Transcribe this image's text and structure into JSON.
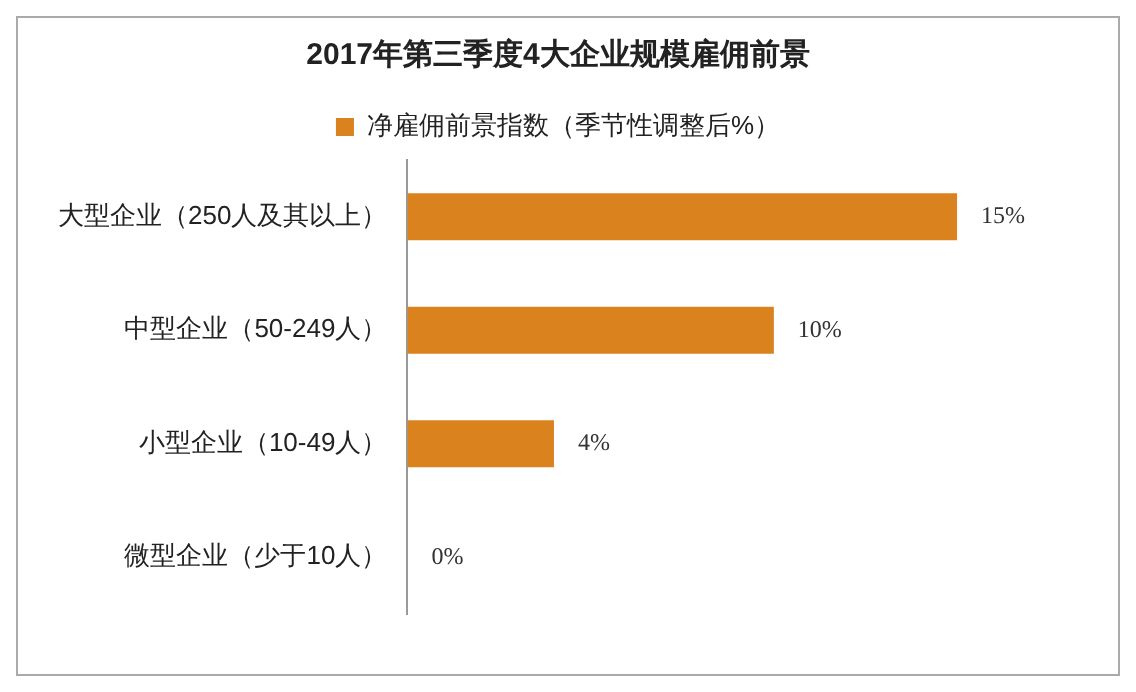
{
  "chart_data": {
    "type": "bar",
    "orientation": "horizontal",
    "title": "2017年第三季度4大企业规模雇佣前景",
    "categories": [
      "大型企业（250人及其以上）",
      "中型企业（50-249人）",
      "小型企业（10-49人）",
      "微型企业（少于10人）"
    ],
    "series": [
      {
        "name": "净雇佣前景指数（季节性调整后%）",
        "color": "#d9821e",
        "values": [
          15,
          10,
          4,
          0
        ],
        "value_labels": [
          "15%",
          "10%",
          "4%",
          "0%"
        ]
      }
    ],
    "legend": "top"
  }
}
